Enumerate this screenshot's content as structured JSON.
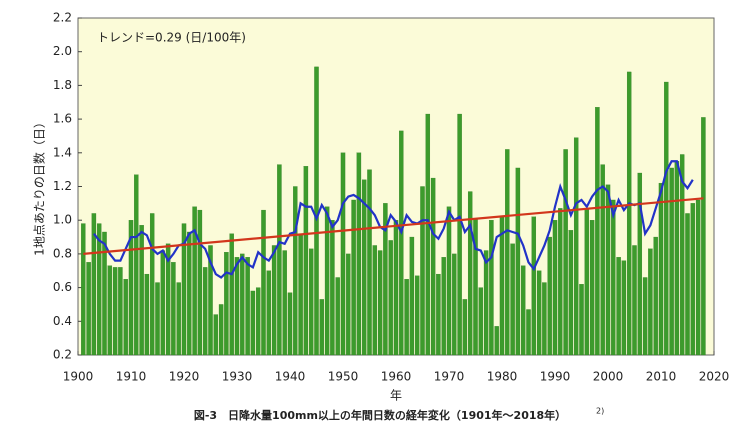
{
  "chart_data": {
    "type": "bar",
    "annotation": "トレンド=0.29 (日/100年)",
    "ylabel": "1地点あたりの日数（日）",
    "xlabel": "年",
    "caption": "図-3　日降水量100mm以上の年間日数の経年変化（1901年～2018年）",
    "caption_ref": "2)",
    "x": [
      1901,
      1902,
      1903,
      1904,
      1905,
      1906,
      1907,
      1908,
      1909,
      1910,
      1911,
      1912,
      1913,
      1914,
      1915,
      1916,
      1917,
      1918,
      1919,
      1920,
      1921,
      1922,
      1923,
      1924,
      1925,
      1926,
      1927,
      1928,
      1929,
      1930,
      1931,
      1932,
      1933,
      1934,
      1935,
      1936,
      1937,
      1938,
      1939,
      1940,
      1941,
      1942,
      1943,
      1944,
      1945,
      1946,
      1947,
      1948,
      1949,
      1950,
      1951,
      1952,
      1953,
      1954,
      1955,
      1956,
      1957,
      1958,
      1959,
      1960,
      1961,
      1962,
      1963,
      1964,
      1965,
      1966,
      1967,
      1968,
      1969,
      1970,
      1971,
      1972,
      1973,
      1974,
      1975,
      1976,
      1977,
      1978,
      1979,
      1980,
      1981,
      1982,
      1983,
      1984,
      1985,
      1986,
      1987,
      1988,
      1989,
      1990,
      1991,
      1992,
      1993,
      1994,
      1995,
      1996,
      1997,
      1998,
      1999,
      2000,
      2001,
      2002,
      2003,
      2004,
      2005,
      2006,
      2007,
      2008,
      2009,
      2010,
      2011,
      2012,
      2013,
      2014,
      2015,
      2016,
      2017,
      2018
    ],
    "series": [
      {
        "type": "bar",
        "color": "#3c9b2c",
        "values": [
          0.98,
          0.75,
          1.04,
          0.98,
          0.93,
          0.73,
          0.72,
          0.72,
          0.65,
          1.0,
          1.27,
          0.97,
          0.68,
          1.04,
          0.63,
          0.82,
          0.86,
          0.75,
          0.63,
          0.98,
          0.93,
          1.08,
          1.06,
          0.72,
          0.85,
          0.44,
          0.5,
          0.81,
          0.92,
          0.78,
          0.8,
          0.78,
          0.58,
          0.6,
          1.06,
          0.7,
          0.85,
          1.33,
          0.82,
          0.57,
          1.2,
          0.92,
          1.32,
          0.83,
          1.91,
          0.53,
          1.08,
          1.0,
          0.66,
          1.4,
          0.8,
          1.12,
          1.4,
          1.24,
          1.3,
          0.85,
          0.82,
          1.1,
          0.88,
          1.0,
          1.53,
          0.65,
          0.9,
          0.67,
          1.2,
          1.63,
          1.25,
          0.68,
          0.78,
          1.08,
          0.8,
          1.63,
          0.53,
          1.17,
          1.01,
          0.6,
          0.82,
          1.0,
          0.37,
          1.02,
          1.42,
          0.86,
          1.31,
          0.73,
          0.47,
          1.02,
          0.7,
          0.63,
          0.9,
          1.0,
          1.07,
          1.42,
          0.94,
          1.49,
          0.62,
          1.07,
          1.0,
          1.67,
          1.33,
          1.21,
          1.12,
          0.78,
          0.76,
          1.88,
          0.85,
          1.28,
          0.66,
          0.83,
          0.9,
          1.22,
          1.82,
          1.31,
          1.35,
          1.39,
          1.04,
          1.1,
          1.12,
          1.61
        ]
      },
      {
        "type": "line",
        "color": "#2233c8",
        "values": [
          null,
          null,
          0.92,
          0.88,
          0.86,
          0.8,
          0.76,
          0.76,
          0.83,
          0.9,
          0.9,
          0.93,
          0.91,
          0.83,
          0.8,
          0.82,
          0.76,
          0.8,
          0.85,
          0.86,
          0.92,
          0.94,
          0.86,
          0.83,
          0.75,
          0.68,
          0.66,
          0.69,
          0.68,
          0.74,
          0.78,
          0.74,
          0.72,
          0.81,
          0.78,
          0.76,
          0.81,
          0.87,
          0.86,
          0.92,
          0.93,
          1.1,
          1.08,
          1.08,
          1.01,
          1.09,
          1.04,
          0.96,
          1.0,
          1.1,
          1.14,
          1.15,
          1.13,
          1.1,
          1.07,
          1.03,
          0.96,
          0.94,
          1.03,
          0.99,
          0.93,
          1.03,
          0.99,
          0.98,
          1.0,
          1.0,
          0.92,
          0.89,
          0.95,
          1.05,
          1.0,
          1.02,
          0.93,
          0.97,
          0.83,
          0.82,
          0.75,
          0.78,
          0.9,
          0.92,
          0.94,
          0.93,
          0.92,
          0.85,
          0.75,
          0.71,
          0.78,
          0.85,
          0.94,
          1.08,
          1.2,
          1.12,
          1.03,
          1.1,
          1.12,
          1.08,
          1.14,
          1.18,
          1.2,
          1.17,
          1.03,
          1.12,
          1.06,
          1.1,
          1.09,
          1.1,
          0.92,
          0.97,
          1.07,
          1.17,
          1.29,
          1.35,
          1.35,
          1.23,
          1.19,
          1.24,
          null,
          null
        ]
      }
    ],
    "trend": {
      "color": "#d2361c",
      "x": [
        1901,
        2018
      ],
      "values": [
        0.8,
        1.13
      ]
    },
    "background": "#fbfbd8",
    "xlim": [
      1900,
      2020
    ],
    "xticks": [
      1900,
      1910,
      1920,
      1930,
      1940,
      1950,
      1960,
      1970,
      1980,
      1990,
      2000,
      2010,
      2020
    ],
    "ylim": [
      0.2,
      2.2
    ],
    "yticks": [
      0.2,
      0.4,
      0.6,
      0.8,
      {
        "value": 1,
        "label": "1.0"
      },
      1.2,
      1.4,
      1.6,
      1.8,
      {
        "value": 2,
        "label": "2.0"
      },
      2.2
    ]
  }
}
